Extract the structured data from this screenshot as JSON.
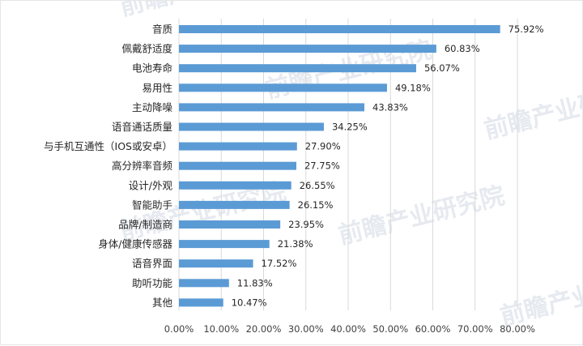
{
  "chart_data": {
    "type": "bar",
    "orientation": "horizontal",
    "categories": [
      "音质",
      "佩戴舒适度",
      "电池寿命",
      "易用性",
      "主动降噪",
      "语音通话质量",
      "与手机互通性（IOS或安卓）",
      "高分辨率音频",
      "设计/外观",
      "智能助手",
      "品牌/制造商",
      "身体/健康传感器",
      "语音界面",
      "助听功能",
      "其他"
    ],
    "values": [
      75.92,
      60.83,
      56.07,
      49.18,
      43.83,
      34.25,
      27.9,
      27.75,
      26.55,
      26.15,
      23.95,
      21.38,
      17.52,
      11.83,
      10.47
    ],
    "value_labels": [
      "75.92%",
      "60.83%",
      "56.07%",
      "49.18%",
      "43.83%",
      "34.25%",
      "27.90%",
      "27.75%",
      "26.55%",
      "26.15%",
      "23.95%",
      "21.38%",
      "17.52%",
      "11.83%",
      "10.47%"
    ],
    "xticks": [
      "0.00%",
      "10.00%",
      "20.00%",
      "30.00%",
      "40.00%",
      "50.00%",
      "60.00%",
      "70.00%",
      "80.00%"
    ],
    "xlim": [
      0,
      80
    ],
    "grid": true,
    "bar_color": "#5b9bd5",
    "gridline_color": "#d9d9d9",
    "title": "",
    "xlabel": "",
    "ylabel": ""
  },
  "watermark": {
    "text": "前瞻产业研究院",
    "color": "#e6eaf0"
  }
}
